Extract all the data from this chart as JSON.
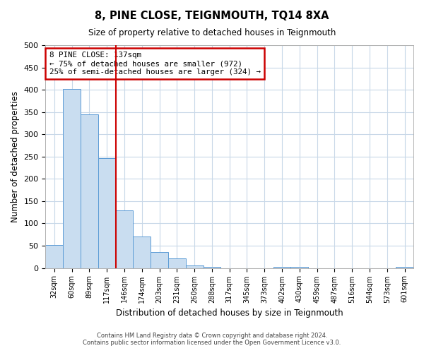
{
  "title": "8, PINE CLOSE, TEIGNMOUTH, TQ14 8XA",
  "subtitle": "Size of property relative to detached houses in Teignmouth",
  "xlabel": "Distribution of detached houses by size in Teignmouth",
  "ylabel": "Number of detached properties",
  "bar_labels": [
    "32sqm",
    "60sqm",
    "89sqm",
    "117sqm",
    "146sqm",
    "174sqm",
    "203sqm",
    "231sqm",
    "260sqm",
    "288sqm",
    "317sqm",
    "345sqm",
    "373sqm",
    "402sqm",
    "430sqm",
    "459sqm",
    "487sqm",
    "516sqm",
    "544sqm",
    "573sqm",
    "601sqm"
  ],
  "bar_values": [
    52,
    401,
    345,
    247,
    130,
    70,
    35,
    21,
    6,
    2,
    0,
    0,
    0,
    2,
    2,
    0,
    0,
    0,
    0,
    0,
    2
  ],
  "bar_color": "#c9ddf0",
  "bar_edge_color": "#5b9bd5",
  "vline_color": "#cc0000",
  "annotation_title": "8 PINE CLOSE: 137sqm",
  "annotation_line1": "← 75% of detached houses are smaller (972)",
  "annotation_line2": "25% of semi-detached houses are larger (324) →",
  "annotation_box_color": "#ffffff",
  "annotation_box_edge": "#cc0000",
  "ylim": [
    0,
    500
  ],
  "yticks": [
    0,
    50,
    100,
    150,
    200,
    250,
    300,
    350,
    400,
    450,
    500
  ],
  "footer1": "Contains HM Land Registry data © Crown copyright and database right 2024.",
  "footer2": "Contains public sector information licensed under the Open Government Licence v3.0.",
  "background_color": "#ffffff",
  "grid_color": "#c8d8e8"
}
